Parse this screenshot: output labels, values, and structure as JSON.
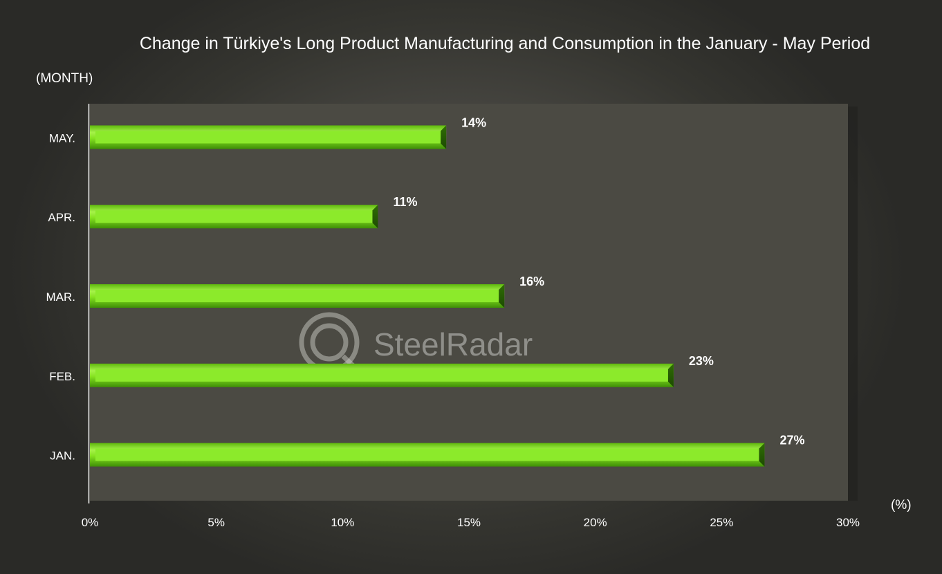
{
  "chart_data": {
    "type": "bar",
    "orientation": "horizontal",
    "title": "Change in Türkiye's Long Product Manufacturing and Consumption in the January - May Period",
    "ylabel": "(MONTH)",
    "xlabel": "(%)",
    "categories": [
      "MAY.",
      "APR.",
      "MAR.",
      "FEB.",
      "JAN."
    ],
    "values": [
      14.1,
      11.4,
      16.4,
      23.1,
      26.7
    ],
    "data_labels": [
      "14%",
      "11%",
      "16%",
      "23%",
      "27%"
    ],
    "xlim": [
      0,
      30
    ],
    "x_ticks": [
      0,
      5,
      10,
      15,
      20,
      25,
      30
    ],
    "x_tick_labels": [
      "0%",
      "5%",
      "10%",
      "15%",
      "20%",
      "25%",
      "30%"
    ],
    "grid": false,
    "legend": "none",
    "bar_color": "#7fe21a",
    "plot_area_color": "#4d4c44"
  },
  "watermark": {
    "text": "SteelRadar"
  }
}
